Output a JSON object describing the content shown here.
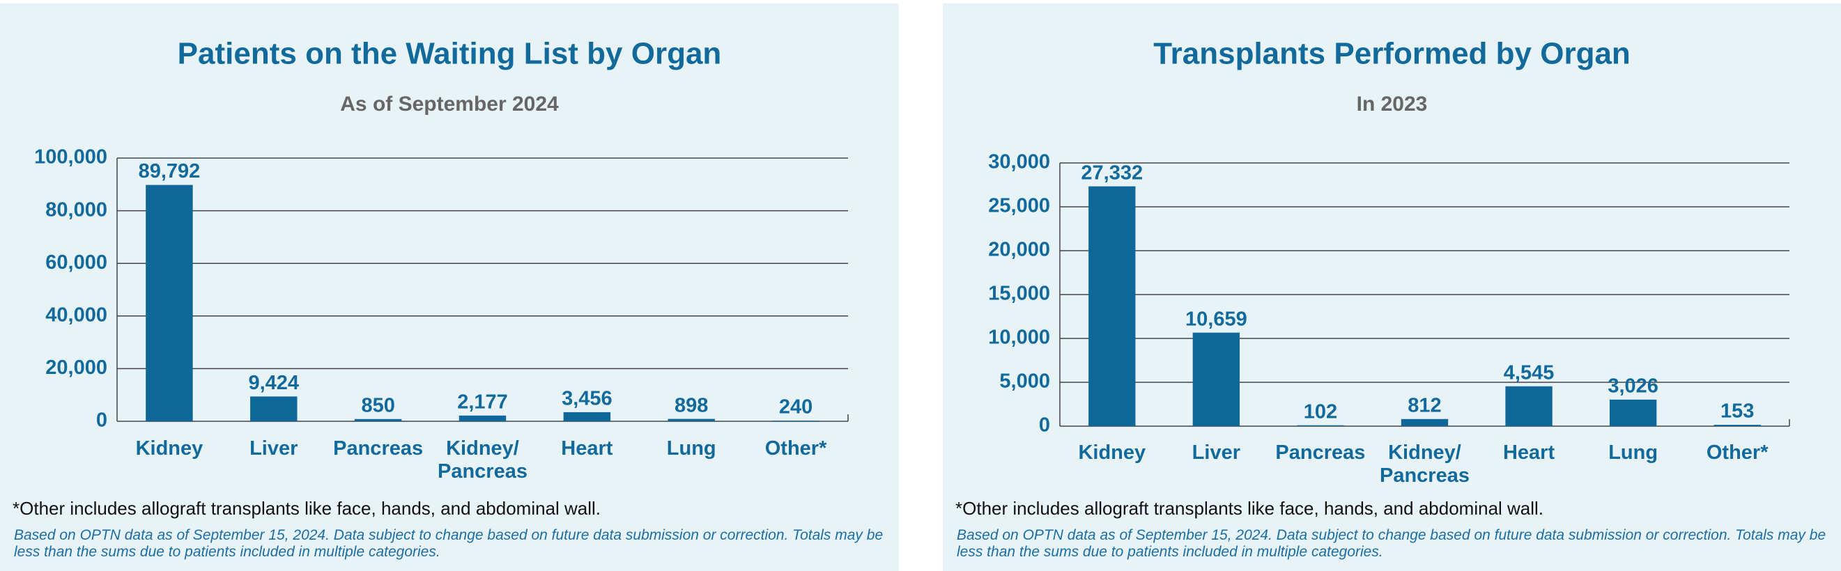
{
  "chart_data": [
    {
      "type": "bar",
      "title": "Patients on the Waiting List by Organ",
      "subtitle": "As of September 2024",
      "categories": [
        "Kidney",
        "Liver",
        "Pancreas",
        "Kidney/ Pancreas",
        "Heart",
        "Lung",
        "Other*"
      ],
      "values": [
        89792,
        9424,
        850,
        2177,
        3456,
        898,
        240
      ],
      "value_labels": [
        "89,792",
        "9,424",
        "850",
        "2,177",
        "3,456",
        "898",
        "240"
      ],
      "color": "#0e6699",
      "ylim": [
        0,
        100000
      ],
      "yticks": [
        0,
        {
          "value": 20000,
          "label": "20,000"
        },
        {
          "value": 40000,
          "label": "40,000"
        },
        {
          "value": 60000,
          "label": "60,000"
        },
        {
          "value": 80000,
          "label": "80,000"
        },
        {
          "value": 100000,
          "label": "100,000"
        }
      ],
      "grid": true,
      "footnote": "*Other includes allograft transplants like face, hands, and abdominal wall.",
      "source": "Based on OPTN data as of September 15, 2024. Data subject to change based on future data submission or correction. Totals may be less than the sums due to patients included in multiple categories."
    },
    {
      "type": "bar",
      "title": "Transplants Performed by Organ",
      "subtitle": "In 2023",
      "categories": [
        "Kidney",
        "Liver",
        "Pancreas",
        "Kidney/ Pancreas",
        "Heart",
        "Lung",
        "Other*"
      ],
      "values": [
        27332,
        10659,
        102,
        812,
        4545,
        3026,
        153
      ],
      "value_labels": [
        "27,332",
        "10,659",
        "102",
        "812",
        "4,545",
        "3,026",
        "153"
      ],
      "color": "#0e6699",
      "ylim": [
        0,
        30000
      ],
      "yticks": [
        0,
        {
          "value": 5000,
          "label": "5,000"
        },
        {
          "value": 10000,
          "label": "10,000"
        },
        {
          "value": 15000,
          "label": "15,000"
        },
        {
          "value": 20000,
          "label": "20,000"
        },
        {
          "value": 25000,
          "label": "25,000"
        },
        {
          "value": 30000,
          "label": "30,000"
        }
      ],
      "grid": true,
      "footnote": "*Other includes allograft transplants like face, hands, and abdominal wall.",
      "source": "Based on OPTN data as of September 15, 2024. Data subject to change based on future data submission or correction. Totals may be less than the sums due to patients included in multiple categories."
    }
  ]
}
